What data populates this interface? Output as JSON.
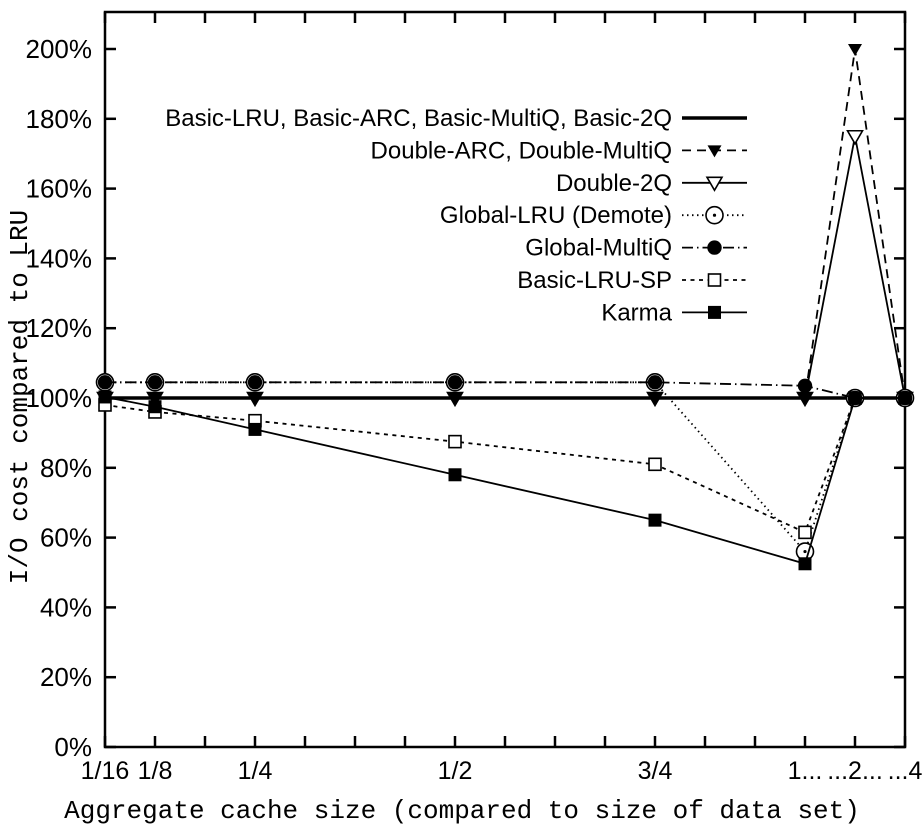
{
  "figure": {
    "background": "#ffffff",
    "ink": "#000000"
  },
  "chart_data": {
    "type": "line",
    "title": "",
    "xlabel": "Aggregate cache size (compared to size of data set)",
    "ylabel": "I/O cost compared to LRU",
    "ylim": [
      0,
      200
    ],
    "grid": "off",
    "legend_position": "top-center-inside",
    "y_axis": {
      "ticks": [
        {
          "value": 0,
          "label": "0%"
        },
        {
          "value": 20,
          "label": "20%"
        },
        {
          "value": 40,
          "label": "40%"
        },
        {
          "value": 60,
          "label": "60%"
        },
        {
          "value": 80,
          "label": "80%"
        },
        {
          "value": 100,
          "label": "100%"
        },
        {
          "value": 120,
          "label": "120%"
        },
        {
          "value": 140,
          "label": "140%"
        },
        {
          "value": 160,
          "label": "160%"
        },
        {
          "value": 180,
          "label": "180%"
        },
        {
          "value": 200,
          "label": "200%"
        }
      ]
    },
    "x_axis": {
      "note": "non-linear axis with breaks after 1; 17 evenly spaced ticks, index 0..16",
      "tick_count": 17,
      "labeled_ticks": [
        {
          "index": 0,
          "label": "1/16"
        },
        {
          "index": 1,
          "label": "1/8"
        },
        {
          "index": 3,
          "label": "1/4"
        },
        {
          "index": 7,
          "label": "1/2"
        },
        {
          "index": 11,
          "label": "3/4"
        },
        {
          "index": 14,
          "label": "1..."
        },
        {
          "index": 15,
          "label": "...2..."
        },
        {
          "index": 16,
          "label": "...4"
        }
      ],
      "category_indices": [
        0,
        1,
        3,
        7,
        11,
        14,
        15,
        16
      ]
    },
    "categories": [
      "1/16",
      "1/8",
      "1/4",
      "1/2",
      "3/4",
      "1",
      "2",
      "4"
    ],
    "series": [
      {
        "name": "Basic-LRU, Basic-ARC, Basic-MultiQ, Basic-2Q",
        "line": "solid-thick",
        "marker": "none",
        "values": [
          100,
          100,
          100,
          100,
          100,
          100,
          100,
          100
        ]
      },
      {
        "name": "Double-ARC, Double-MultiQ",
        "line": "dashed",
        "marker": "triangle-down-filled",
        "values": [
          100,
          100,
          100,
          100,
          100,
          100,
          200,
          100
        ]
      },
      {
        "name": "Double-2Q",
        "line": "solid",
        "marker": "triangle-down-open",
        "values": [
          100,
          100,
          100,
          100,
          100,
          100,
          175,
          100
        ]
      },
      {
        "name": "Global-LRU (Demote)",
        "line": "dotted",
        "marker": "circle-open-dot",
        "values": [
          104.5,
          104.5,
          104.5,
          104.5,
          104.5,
          56,
          100,
          100
        ]
      },
      {
        "name": "Global-MultiQ",
        "line": "dashdot",
        "marker": "circle-filled",
        "values": [
          104.5,
          104.5,
          104.5,
          104.5,
          104.5,
          103.5,
          100,
          100
        ]
      },
      {
        "name": "Basic-LRU-SP",
        "line": "dashed-short",
        "marker": "square-open",
        "values": [
          98,
          96,
          93.5,
          87.5,
          81,
          61.5,
          100,
          100
        ]
      },
      {
        "name": "Karma",
        "line": "solid",
        "marker": "square-filled",
        "values": [
          100.3,
          97.5,
          91,
          78,
          65,
          52.5,
          100,
          100
        ]
      }
    ]
  }
}
